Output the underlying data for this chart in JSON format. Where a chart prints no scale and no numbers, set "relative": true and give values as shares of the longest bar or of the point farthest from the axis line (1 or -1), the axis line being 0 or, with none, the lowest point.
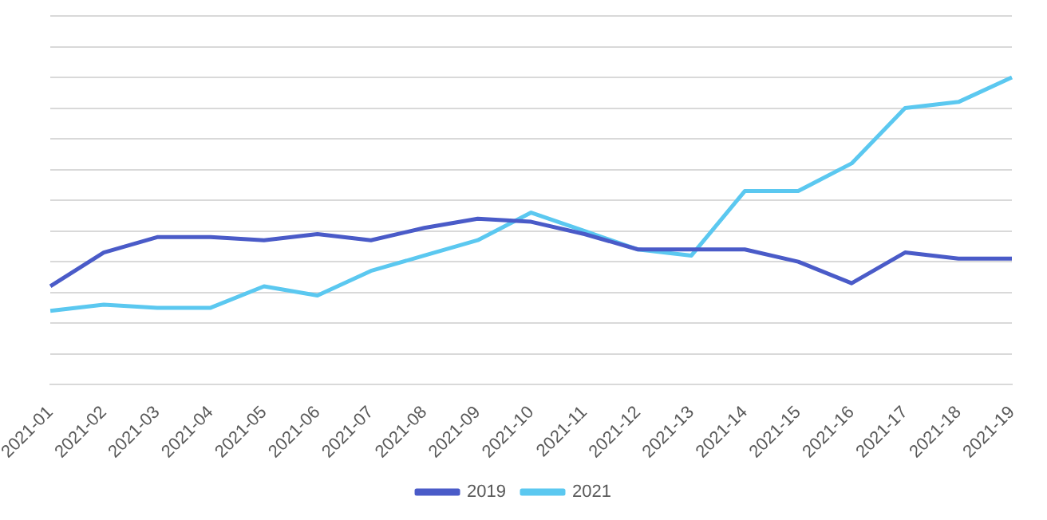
{
  "chart_data": {
    "type": "line",
    "relative": true,
    "grid": "y",
    "legend": "bottom",
    "marker": "none",
    "line_style": "solid",
    "categories": [
      "2021-01",
      "2021-02",
      "2021-03",
      "2021-04",
      "2021-05",
      "2021-06",
      "2021-07",
      "2021-08",
      "2021-09",
      "2021-10",
      "2021-11",
      "2021-12",
      "2021-13",
      "2021-14",
      "2021-15",
      "2021-16",
      "2021-17",
      "2021-18",
      "2021-19"
    ],
    "series": [
      {
        "name": "2019",
        "color": "#4a5bc8",
        "values": [
          0.32,
          0.43,
          0.48,
          0.48,
          0.47,
          0.49,
          0.47,
          0.51,
          0.54,
          0.53,
          0.49,
          0.44,
          0.44,
          0.44,
          0.4,
          0.33,
          0.43,
          0.41,
          0.41
        ]
      },
      {
        "name": "2021",
        "color": "#5bc8f0",
        "values": [
          0.24,
          0.26,
          0.25,
          0.25,
          0.32,
          0.29,
          0.37,
          0.42,
          0.47,
          0.56,
          0.5,
          0.44,
          0.42,
          0.63,
          0.63,
          0.72,
          0.9,
          0.92,
          1
        ]
      }
    ]
  }
}
